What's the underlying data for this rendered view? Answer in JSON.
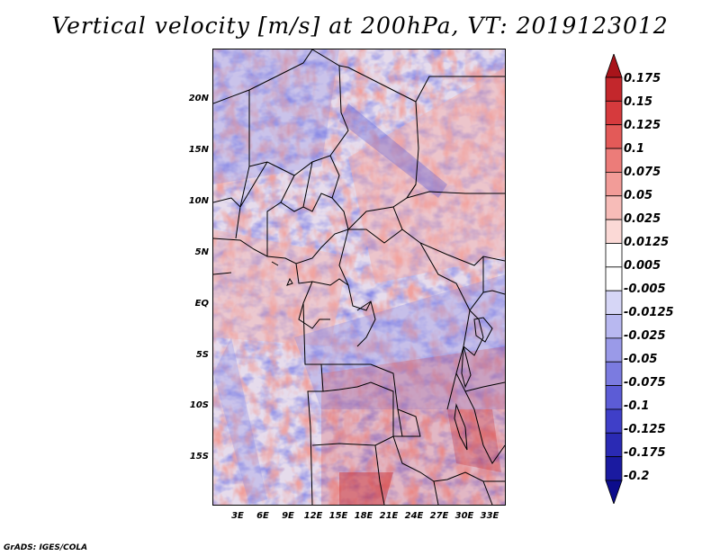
{
  "title": "Vertical velocity [m/s] at 200hPa, VT: 2019123012",
  "map": {
    "lat_labels": [
      "20N",
      "15N",
      "10N",
      "5N",
      "EQ",
      "5S",
      "10S",
      "15S"
    ],
    "lon_labels": [
      "3E",
      "6E",
      "9E",
      "12E",
      "15E",
      "18E",
      "21E",
      "24E",
      "27E",
      "30E",
      "33E"
    ],
    "extent": {
      "lon_min": 0,
      "lon_max": 35,
      "lat_min": -20,
      "lat_max": 25
    }
  },
  "colorbar": {
    "levels": [
      "0.175",
      "0.15",
      "0.125",
      "0.1",
      "0.075",
      "0.05",
      "0.025",
      "0.0125",
      "0.005",
      "-0.005",
      "-0.0125",
      "-0.025",
      "-0.05",
      "-0.075",
      "-0.1",
      "-0.125",
      "-0.175",
      "-0.2"
    ],
    "colors": [
      "#a8141a",
      "#c3272c",
      "#d63a3d",
      "#e35a58",
      "#ec7c79",
      "#f29c98",
      "#f7bcb8",
      "#fbd9d6",
      "#ffffff",
      "#ffffff",
      "#d6d6f6",
      "#b8b8f0",
      "#9a9ae8",
      "#7b7be0",
      "#5c5cd6",
      "#3f3fc8",
      "#2a2ab4",
      "#1a1aa0",
      "#0c0c8c"
    ]
  },
  "credit": "GrADS: IGES/COLA"
}
